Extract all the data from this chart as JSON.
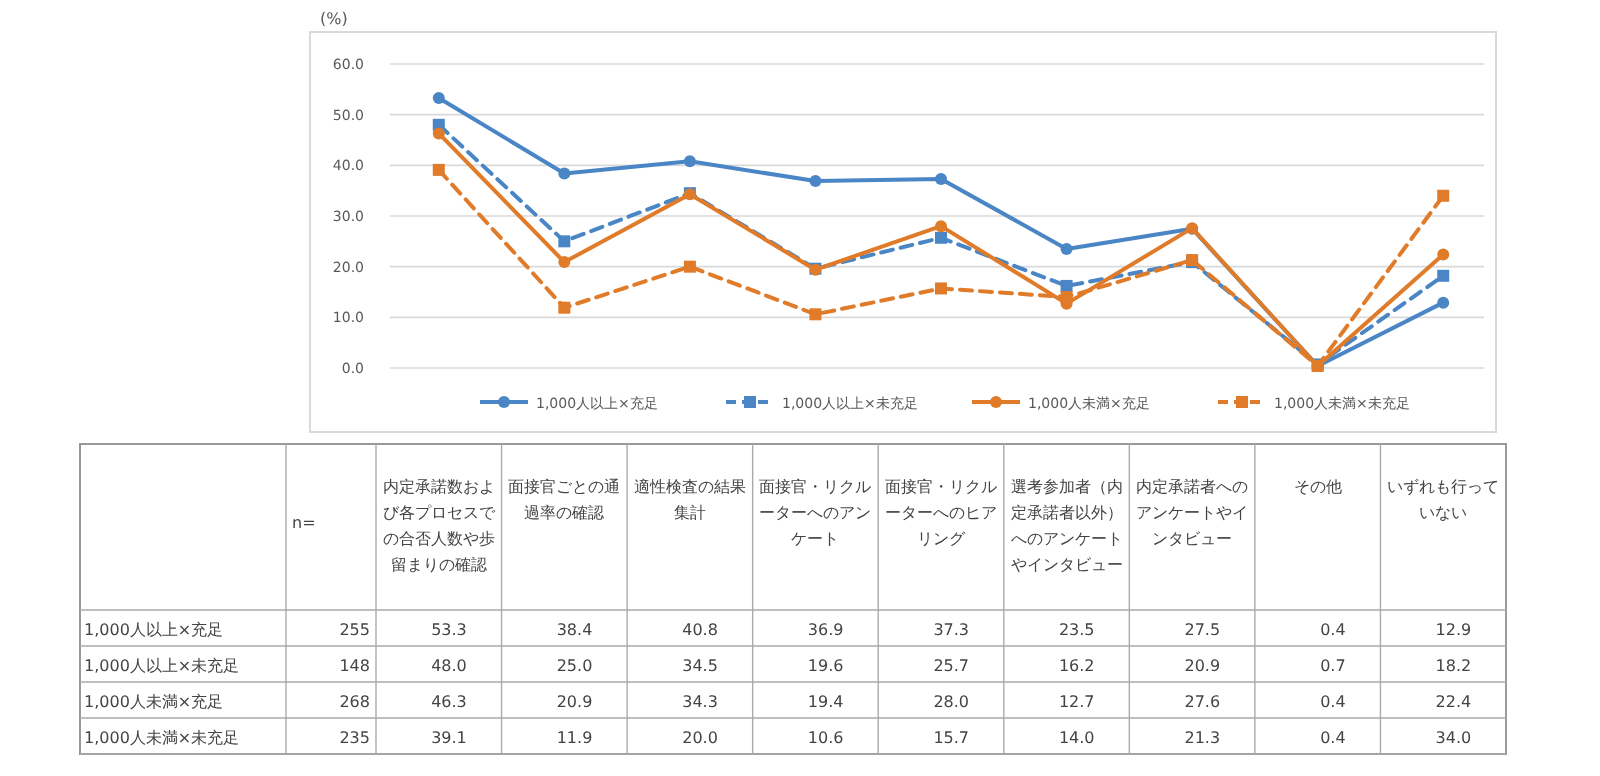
{
  "chart_data": {
    "type": "line",
    "ylabel": "(%)",
    "ylim": [
      0,
      60
    ],
    "yticks": [
      {
        "value": 0,
        "label": "0.0"
      },
      {
        "value": 10,
        "label": "10.0"
      },
      {
        "value": 20,
        "label": "20.0"
      },
      {
        "value": 30,
        "label": "30.0"
      },
      {
        "value": 40,
        "label": "40.0"
      },
      {
        "value": 50,
        "label": "50.0"
      },
      {
        "value": 60,
        "label": "60.0"
      }
    ],
    "grid": "y",
    "legend": "bottom",
    "tick_labels": "y",
    "categories": [
      "内定承諾数および各プロセスでの合否人数や歩留まりの確認",
      "面接官ごとの通過率の確認",
      "適性検査の結果集計",
      "面接官・リクルーターへのアンケート",
      "面接官・リクルーターへのヒアリング",
      "選考参加者（内定承諾者以外）へのアンケートやインタビュー",
      "内定承諾者へのアンケートやインタビュー",
      "その他",
      "いずれも行っていない"
    ],
    "series": [
      {
        "name": "1,000人以上×充足",
        "color": "#4a86c5",
        "marker": "circle",
        "line_style": "solid",
        "values": [
          53.3,
          38.4,
          40.8,
          36.9,
          37.3,
          23.5,
          27.5,
          0.4,
          12.9
        ],
        "value_labels": [
          "53.3",
          "38.4",
          "40.8",
          "36.9",
          "37.3",
          "23.5",
          "27.5",
          "0.4",
          "12.9"
        ]
      },
      {
        "name": "1,000人以上×未充足",
        "color": "#4a86c5",
        "marker": "square",
        "line_style": "dashed",
        "values": [
          48.0,
          25.0,
          34.5,
          19.6,
          25.7,
          16.2,
          20.9,
          0.7,
          18.2
        ],
        "value_labels": [
          "48.0",
          "25.0",
          "34.5",
          "19.6",
          "25.7",
          "16.2",
          "20.9",
          "0.7",
          "18.2"
        ]
      },
      {
        "name": "1,000人未満×充足",
        "color": "#e07b2a",
        "marker": "circle",
        "line_style": "solid",
        "values": [
          46.3,
          20.9,
          34.3,
          19.4,
          28.0,
          12.7,
          27.6,
          0.4,
          22.4
        ],
        "value_labels": [
          "46.3",
          "20.9",
          "34.3",
          "19.4",
          "28.0",
          "12.7",
          "27.6",
          "0.4",
          "22.4"
        ]
      },
      {
        "name": "1,000人未満×未充足",
        "color": "#e07b2a",
        "marker": "square",
        "line_style": "dashed",
        "values": [
          39.1,
          11.9,
          20.0,
          10.6,
          15.7,
          14.0,
          21.3,
          0.4,
          34.0
        ],
        "value_labels": [
          "39.1",
          "11.9",
          "20.0",
          "10.6",
          "15.7",
          "14.0",
          "21.3",
          "0.4",
          "34.0"
        ]
      }
    ],
    "annotations": [
      "n=",
      "255",
      "148",
      "268",
      "235"
    ]
  }
}
